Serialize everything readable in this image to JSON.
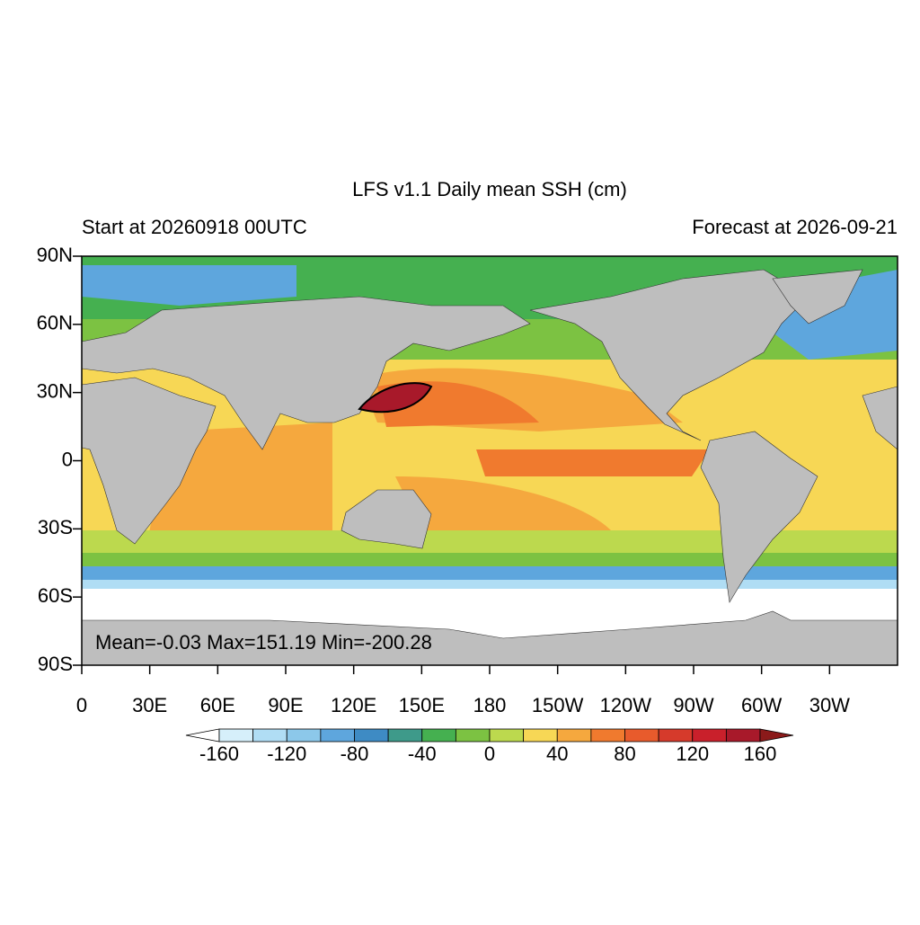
{
  "map": {
    "title": "LFS v1.1 Daily mean SSH (cm)",
    "left_subtitle": "Start at 20260918 00UTC",
    "right_subtitle": "Forecast at 2026-09-21",
    "stats": "Mean=-0.03  Max=151.19  Min=-200.28",
    "lat_ticks": [
      {
        "value": 90,
        "label": "90N"
      },
      {
        "value": 60,
        "label": "60N"
      },
      {
        "value": 30,
        "label": "30N"
      },
      0,
      {
        "value": -30,
        "label": "30S"
      },
      {
        "value": -60,
        "label": "60S"
      },
      {
        "value": -90,
        "label": "90S"
      }
    ],
    "lon_ticks": [
      0,
      {
        "value": 30,
        "label": "30E"
      },
      {
        "value": 60,
        "label": "60E"
      },
      {
        "value": 90,
        "label": "90E"
      },
      {
        "value": 120,
        "label": "120E"
      },
      {
        "value": 150,
        "label": "150E"
      },
      180,
      {
        "value": 210,
        "label": "150W"
      },
      {
        "value": 240,
        "label": "120W"
      },
      {
        "value": 270,
        "label": "90W"
      },
      {
        "value": 300,
        "label": "60W"
      },
      {
        "value": 330,
        "label": "30W"
      }
    ],
    "colorbar": {
      "boundaries": [
        -160,
        -140,
        -120,
        -100,
        -80,
        -60,
        -40,
        -20,
        0,
        20,
        40,
        60,
        80,
        100,
        120,
        140,
        160
      ],
      "ticks": [
        -160,
        -120,
        -80,
        -40,
        0,
        40,
        80,
        120,
        160
      ],
      "colors": [
        "#ffffff",
        "#d6effa",
        "#b0ddf4",
        "#8cc8ea",
        "#5ea6dd",
        "#3e8bc4",
        "#3e9a8a",
        "#45b050",
        "#7cc242",
        "#bcd94e",
        "#f7d755",
        "#f5a83e",
        "#f07a2e",
        "#e85b2c",
        "#d63a2b",
        "#c9202b",
        "#a8192a",
        "#8b1a1a"
      ]
    }
  }
}
